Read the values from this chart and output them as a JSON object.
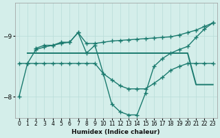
{
  "xlabel": "Humidex (Indice chaleur)",
  "bg_color": "#d4eeea",
  "grid_color": "#b8dcd8",
  "line_color": "#1a7a6e",
  "xlim": [
    -0.5,
    23.5
  ],
  "ylim": [
    -9.55,
    -7.65
  ],
  "yticks": [
    -9,
    -8
  ],
  "xticks": [
    0,
    1,
    2,
    3,
    4,
    5,
    6,
    7,
    8,
    9,
    10,
    11,
    12,
    13,
    14,
    15,
    16,
    17,
    18,
    19,
    20,
    21,
    22,
    23
  ],
  "line_peak_x": [
    0,
    1,
    2,
    3,
    4,
    5,
    6,
    7,
    8,
    9,
    10,
    11,
    12,
    13,
    14,
    15,
    16,
    17,
    18,
    19,
    20,
    21,
    22,
    23
  ],
  "line_peak_y": [
    -8.0,
    -8.55,
    -8.78,
    -8.82,
    -8.85,
    -8.88,
    -8.9,
    -9.06,
    -8.72,
    -8.85,
    -8.38,
    -7.88,
    -7.75,
    -7.7,
    -7.7,
    -8.06,
    -8.5,
    -8.63,
    -8.72,
    -8.78,
    -8.83,
    -8.98,
    -9.12,
    -9.22
  ],
  "line_stepped_x": [
    0,
    1,
    2,
    3,
    4,
    5,
    6,
    7,
    8,
    9,
    10,
    11,
    12,
    13,
    14,
    15,
    16,
    17,
    18,
    19,
    20,
    21,
    22,
    23
  ],
  "line_stepped_y": [
    -8.55,
    -8.55,
    -8.55,
    -8.55,
    -8.55,
    -8.55,
    -8.55,
    -8.55,
    -8.55,
    -8.55,
    -8.38,
    -8.28,
    -8.18,
    -8.13,
    -8.13,
    -8.13,
    -8.22,
    -8.32,
    -8.44,
    -8.5,
    -8.55,
    -8.55,
    -8.55,
    -8.55
  ],
  "line_horiz_x": [
    1,
    2,
    3,
    4,
    5,
    6,
    7,
    8,
    9,
    10,
    11,
    12,
    13,
    14,
    15,
    16,
    17,
    18,
    19,
    20,
    21,
    22,
    23
  ],
  "line_horiz_y": [
    -8.72,
    -8.72,
    -8.72,
    -8.72,
    -8.72,
    -8.72,
    -8.72,
    -8.72,
    -8.72,
    -8.72,
    -8.72,
    -8.72,
    -8.72,
    -8.72,
    -8.72,
    -8.72,
    -8.72,
    -8.72,
    -8.72,
    -8.72,
    -8.2,
    -8.2,
    -8.2
  ],
  "line_declining_x": [
    2,
    3,
    4,
    5,
    6,
    7,
    8,
    9,
    10,
    11,
    12,
    13,
    14,
    15,
    16,
    17,
    18,
    19,
    20,
    21,
    22,
    23
  ],
  "line_declining_y": [
    -8.8,
    -8.85,
    -8.85,
    -8.9,
    -8.9,
    -9.06,
    -8.88,
    -8.88,
    -8.9,
    -8.92,
    -8.93,
    -8.94,
    -8.95,
    -8.96,
    -8.97,
    -8.98,
    -8.99,
    -9.02,
    -9.06,
    -9.1,
    -9.16,
    -9.22
  ]
}
